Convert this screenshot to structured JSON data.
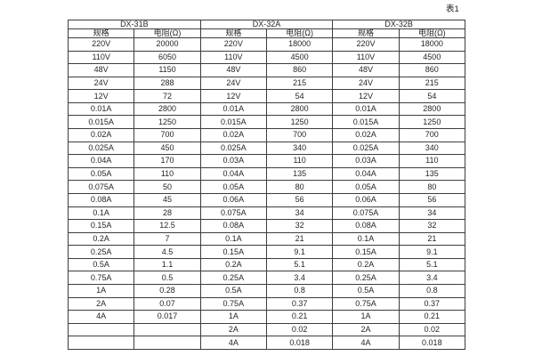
{
  "caption": "表1",
  "table": {
    "groups": [
      {
        "name": "DX-31B",
        "spec_header": "规格",
        "resistance_header": "电阻(Ω)"
      },
      {
        "name": "DX-32A",
        "spec_header": "规格",
        "resistance_header": "电阻(Ω)"
      },
      {
        "name": "DX-32B",
        "spec_header": "规格",
        "resistance_header": "电阻(Ω)"
      }
    ],
    "rows": [
      [
        "220V",
        "20000",
        "220V",
        "18000",
        "220V",
        "18000"
      ],
      [
        "110V",
        "6050",
        "110V",
        "4500",
        "110V",
        "4500"
      ],
      [
        "48V",
        "1150",
        "48V",
        "860",
        "48V",
        "860"
      ],
      [
        "24V",
        "288",
        "24V",
        "215",
        "24V",
        "215"
      ],
      [
        "12V",
        "72",
        "12V",
        "54",
        "12V",
        "54"
      ],
      [
        "0.01A",
        "2800",
        "0.01A",
        "2800",
        "0.01A",
        "2800"
      ],
      [
        "0.015A",
        "1250",
        "0.015A",
        "1250",
        "0.015A",
        "1250"
      ],
      [
        "0.02A",
        "700",
        "0.02A",
        "700",
        "0.02A",
        "700"
      ],
      [
        "0.025A",
        "450",
        "0.025A",
        "340",
        "0.025A",
        "340"
      ],
      [
        "0.04A",
        "170",
        "0.03A",
        "110",
        "0.03A",
        "110"
      ],
      [
        "0.05A",
        "110",
        "0.04A",
        "135",
        "0.04A",
        "135"
      ],
      [
        "0.075A",
        "50",
        "0.05A",
        "80",
        "0.05A",
        "80"
      ],
      [
        "0.08A",
        "45",
        "0.06A",
        "56",
        "0.06A",
        "56"
      ],
      [
        "0.1A",
        "28",
        "0.075A",
        "34",
        "0.075A",
        "34"
      ],
      [
        "0.15A",
        "12.5",
        "0.08A",
        "32",
        "0.08A",
        "32"
      ],
      [
        "0.2A",
        "7",
        "0.1A",
        "21",
        "0.1A",
        "21"
      ],
      [
        "0.25A",
        "4.5",
        "0.15A",
        "9.1",
        "0.15A",
        "9.1"
      ],
      [
        "0.5A",
        "1.1",
        "0.2A",
        "5.1",
        "0.2A",
        "5.1"
      ],
      [
        "0.75A",
        "0.5",
        "0.25A",
        "3.4",
        "0.25A",
        "3.4"
      ],
      [
        "1A",
        "0.28",
        "0.5A",
        "0.8",
        "0.5A",
        "0.8"
      ],
      [
        "2A",
        "0.07",
        "0.75A",
        "0.37",
        "0.75A",
        "0.37"
      ],
      [
        "4A",
        "0.017",
        "1A",
        "0.21",
        "1A",
        "0.21"
      ],
      [
        "",
        "",
        "2A",
        "0.02",
        "2A",
        "0.02"
      ],
      [
        "",
        "",
        "4A",
        "0.018",
        "4A",
        "0.018"
      ]
    ]
  }
}
